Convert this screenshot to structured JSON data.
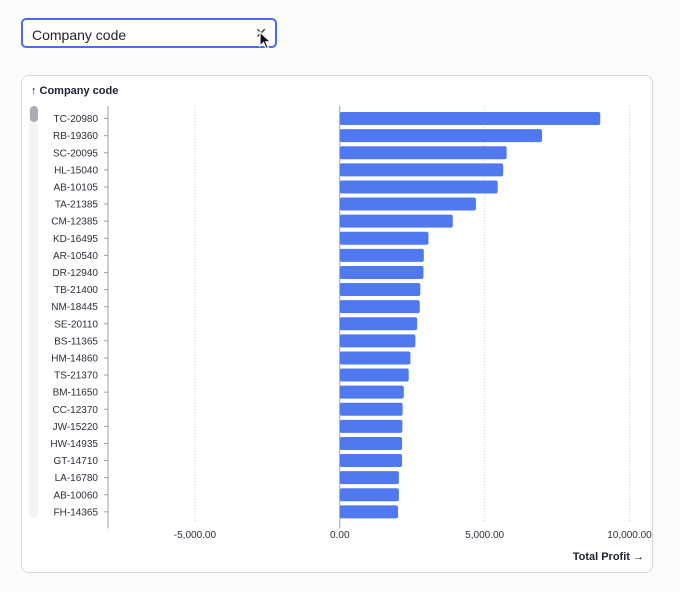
{
  "filter": {
    "value": "Company code",
    "clear_icon": "close-icon"
  },
  "chart_title": "Company code",
  "x_axis_title": "Total Profit",
  "chart_data": {
    "type": "bar",
    "orientation": "horizontal",
    "ylabel": "Company code",
    "xlabel": "Total Profit",
    "xlim": [
      -8000,
      10500
    ],
    "xticks": [
      -5000,
      0,
      5000,
      10000
    ],
    "xtick_labels": [
      "-5,000.00",
      "0.00",
      "5,000.00",
      "10,000.00"
    ],
    "grid": true,
    "bar_color": "#5079f0",
    "categories": [
      "TC-20980",
      "RB-19360",
      "SC-20095",
      "HL-15040",
      "AB-10105",
      "TA-21385",
      "CM-12385",
      "KD-16495",
      "AR-10540",
      "DR-12940",
      "TB-21400",
      "NM-18445",
      "SE-20110",
      "BS-11365",
      "HM-14860",
      "TS-21370",
      "BM-11650",
      "CC-12370",
      "JW-15220",
      "HW-14935",
      "GT-14710",
      "LA-16780",
      "AB-10060",
      "FH-14365"
    ],
    "values": [
      8990,
      6980,
      5760,
      5640,
      5450,
      4700,
      3900,
      3060,
      2900,
      2890,
      2780,
      2760,
      2670,
      2610,
      2440,
      2380,
      2210,
      2170,
      2160,
      2150,
      2150,
      2040,
      2040,
      2010
    ]
  }
}
